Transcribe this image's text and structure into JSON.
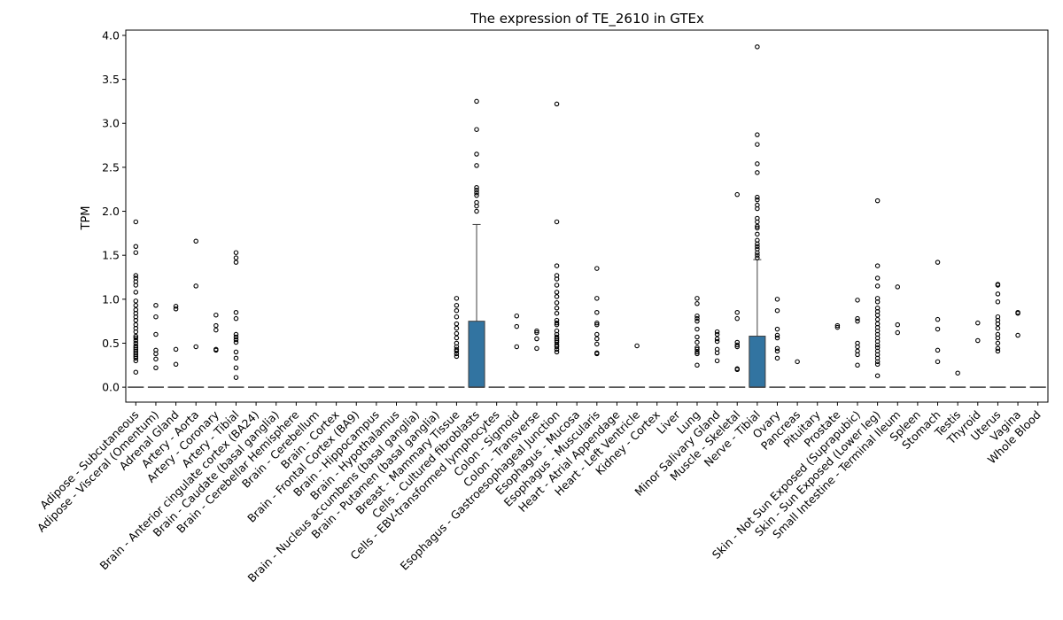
{
  "chart_data": {
    "type": "box",
    "title": "The expression of TE_2610 in GTEx",
    "xlabel": "",
    "ylabel": "TPM",
    "ylim": [
      -0.17,
      4.06
    ],
    "yticks": [
      "0.0",
      "0.5",
      "1.0",
      "1.5",
      "2.0",
      "2.5",
      "3.0",
      "3.5",
      "4.0"
    ],
    "grid": false,
    "legend": "none",
    "box_color": "#3274a1",
    "categories": [
      "Adipose - Subcutaneous",
      "Adipose - Visceral (Omentum)",
      "Adrenal Gland",
      "Artery - Aorta",
      "Artery - Coronary",
      "Artery - Tibial",
      "Brain - Anterior cingulate cortex (BA24)",
      "Brain - Caudate (basal ganglia)",
      "Brain - Cerebellar Hemisphere",
      "Brain - Cerebellum",
      "Brain - Cortex",
      "Brain - Frontal Cortex (BA9)",
      "Brain - Hippocampus",
      "Brain - Hypothalamus",
      "Brain - Nucleus accumbens (basal ganglia)",
      "Brain - Putamen (basal ganglia)",
      "Breast - Mammary Tissue",
      "Cells - Cultured fibroblasts",
      "Cells - EBV-transformed lymphocytes",
      "Colon - Sigmoid",
      "Colon - Transverse",
      "Esophagus - Gastroesophageal Junction",
      "Esophagus - Mucosa",
      "Esophagus - Muscularis",
      "Heart - Atrial Appendage",
      "Heart - Left Ventricle",
      "Kidney - Cortex",
      "Liver",
      "Lung",
      "Minor Salivary Gland",
      "Muscle - Skeletal",
      "Nerve - Tibial",
      "Ovary",
      "Pancreas",
      "Pituitary",
      "Prostate",
      "Skin - Not Sun Exposed (Suprapubic)",
      "Skin - Sun Exposed (Lower leg)",
      "Small Intestine - Terminal Ileum",
      "Spleen",
      "Stomach",
      "Testis",
      "Thyroid",
      "Uterus",
      "Vagina",
      "Whole Blood"
    ],
    "boxes": [
      {
        "q1": 0,
        "median": 0,
        "q3": 0,
        "whislo": 0,
        "whishi": 0,
        "fliers": [
          1.88,
          1.6,
          1.53,
          1.27,
          1.24,
          1.2,
          1.16,
          1.08,
          0.98,
          0.93,
          0.88,
          0.84,
          0.8,
          0.76,
          0.71,
          0.67,
          0.63,
          0.58,
          0.56,
          0.53,
          0.5,
          0.47,
          0.45,
          0.43,
          0.41,
          0.39,
          0.37,
          0.35,
          0.33,
          0.3,
          0.17
        ]
      },
      {
        "q1": 0,
        "median": 0,
        "q3": 0,
        "whislo": 0,
        "whishi": 0,
        "fliers": [
          0.93,
          0.8,
          0.6,
          0.42,
          0.38,
          0.32,
          0.22
        ]
      },
      {
        "q1": 0,
        "median": 0,
        "q3": 0,
        "whislo": 0,
        "whishi": 0,
        "fliers": [
          0.92,
          0.89,
          0.43,
          0.26
        ]
      },
      {
        "q1": 0,
        "median": 0,
        "q3": 0,
        "whislo": 0,
        "whishi": 0,
        "fliers": [
          1.66,
          1.15,
          0.46
        ]
      },
      {
        "q1": 0,
        "median": 0,
        "q3": 0,
        "whislo": 0,
        "whishi": 0,
        "fliers": [
          0.82,
          0.7,
          0.65,
          0.43,
          0.42
        ]
      },
      {
        "q1": 0,
        "median": 0,
        "q3": 0,
        "whislo": 0,
        "whishi": 0,
        "fliers": [
          1.53,
          1.47,
          1.42,
          0.85,
          0.78,
          0.6,
          0.57,
          0.54,
          0.51,
          0.4,
          0.33,
          0.22,
          0.11
        ]
      },
      {
        "q1": 0,
        "median": 0,
        "q3": 0,
        "whislo": 0,
        "whishi": 0,
        "fliers": []
      },
      {
        "q1": 0,
        "median": 0,
        "q3": 0,
        "whislo": 0,
        "whishi": 0,
        "fliers": []
      },
      {
        "q1": 0,
        "median": 0,
        "q3": 0,
        "whislo": 0,
        "whishi": 0,
        "fliers": []
      },
      {
        "q1": 0,
        "median": 0,
        "q3": 0,
        "whislo": 0,
        "whishi": 0,
        "fliers": []
      },
      {
        "q1": 0,
        "median": 0,
        "q3": 0,
        "whislo": 0,
        "whishi": 0,
        "fliers": []
      },
      {
        "q1": 0,
        "median": 0,
        "q3": 0,
        "whislo": 0,
        "whishi": 0,
        "fliers": []
      },
      {
        "q1": 0,
        "median": 0,
        "q3": 0,
        "whislo": 0,
        "whishi": 0,
        "fliers": []
      },
      {
        "q1": 0,
        "median": 0,
        "q3": 0,
        "whislo": 0,
        "whishi": 0,
        "fliers": []
      },
      {
        "q1": 0,
        "median": 0,
        "q3": 0,
        "whislo": 0,
        "whishi": 0,
        "fliers": []
      },
      {
        "q1": 0,
        "median": 0,
        "q3": 0,
        "whislo": 0,
        "whishi": 0,
        "fliers": []
      },
      {
        "q1": 0,
        "median": 0,
        "q3": 0,
        "whislo": 0,
        "whishi": 0,
        "fliers": [
          1.01,
          0.93,
          0.87,
          0.8,
          0.72,
          0.67,
          0.61,
          0.56,
          0.5,
          0.46,
          0.43,
          0.41,
          0.38,
          0.35
        ]
      },
      {
        "q1": 0,
        "median": 0,
        "q3": 0.75,
        "whislo": 0,
        "whishi": 1.85,
        "fliers": [
          3.25,
          2.93,
          2.65,
          2.52,
          2.27,
          2.24,
          2.21,
          2.18,
          2.1,
          2.06,
          2.0
        ]
      },
      {
        "q1": 0,
        "median": 0,
        "q3": 0,
        "whislo": 0,
        "whishi": 0,
        "fliers": []
      },
      {
        "q1": 0,
        "median": 0,
        "q3": 0,
        "whislo": 0,
        "whishi": 0,
        "fliers": [
          0.81,
          0.69,
          0.46
        ]
      },
      {
        "q1": 0,
        "median": 0,
        "q3": 0,
        "whislo": 0,
        "whishi": 0,
        "fliers": [
          0.64,
          0.62,
          0.55,
          0.44
        ]
      },
      {
        "q1": 0,
        "median": 0,
        "q3": 0,
        "whislo": 0,
        "whishi": 0,
        "fliers": [
          3.22,
          1.88,
          1.38,
          1.27,
          1.23,
          1.16,
          1.08,
          1.03,
          0.96,
          0.9,
          0.84,
          0.76,
          0.73,
          0.71,
          0.64,
          0.6,
          0.57,
          0.55,
          0.53,
          0.51,
          0.48,
          0.46,
          0.43,
          0.4
        ]
      },
      {
        "q1": 0,
        "median": 0,
        "q3": 0,
        "whislo": 0,
        "whishi": 0,
        "fliers": []
      },
      {
        "q1": 0,
        "median": 0,
        "q3": 0,
        "whislo": 0,
        "whishi": 0,
        "fliers": [
          1.35,
          1.01,
          0.85,
          0.73,
          0.71,
          0.6,
          0.55,
          0.49,
          0.39,
          0.38
        ]
      },
      {
        "q1": 0,
        "median": 0,
        "q3": 0,
        "whislo": 0,
        "whishi": 0,
        "fliers": []
      },
      {
        "q1": 0,
        "median": 0,
        "q3": 0,
        "whislo": 0,
        "whishi": 0,
        "fliers": [
          0.47
        ]
      },
      {
        "q1": 0,
        "median": 0,
        "q3": 0,
        "whislo": 0,
        "whishi": 0,
        "fliers": []
      },
      {
        "q1": 0,
        "median": 0,
        "q3": 0,
        "whislo": 0,
        "whishi": 0,
        "fliers": []
      },
      {
        "q1": 0,
        "median": 0,
        "q3": 0,
        "whislo": 0,
        "whishi": 0,
        "fliers": [
          1.01,
          0.95,
          0.81,
          0.78,
          0.75,
          0.66,
          0.57,
          0.51,
          0.45,
          0.43,
          0.4,
          0.38,
          0.25
        ]
      },
      {
        "q1": 0,
        "median": 0,
        "q3": 0,
        "whislo": 0,
        "whishi": 0,
        "fliers": [
          0.63,
          0.6,
          0.55,
          0.52,
          0.43,
          0.39,
          0.3
        ]
      },
      {
        "q1": 0,
        "median": 0,
        "q3": 0,
        "whislo": 0,
        "whishi": 0,
        "fliers": [
          2.19,
          0.85,
          0.78,
          0.51,
          0.48,
          0.46,
          0.21,
          0.2
        ]
      },
      {
        "q1": 0,
        "median": 0,
        "q3": 0.58,
        "whislo": 0,
        "whishi": 1.45,
        "fliers": [
          3.87,
          2.87,
          2.76,
          2.54,
          2.44,
          2.16,
          2.13,
          2.07,
          2.03,
          1.92,
          1.88,
          1.83,
          1.81,
          1.74,
          1.67,
          1.63,
          1.6,
          1.57,
          1.53,
          1.5,
          1.47
        ]
      },
      {
        "q1": 0,
        "median": 0,
        "q3": 0,
        "whislo": 0,
        "whishi": 0,
        "fliers": [
          1.0,
          0.87,
          0.66,
          0.59,
          0.56,
          0.44,
          0.41,
          0.33
        ]
      },
      {
        "q1": 0,
        "median": 0,
        "q3": 0,
        "whislo": 0,
        "whishi": 0,
        "fliers": [
          0.29
        ]
      },
      {
        "q1": 0,
        "median": 0,
        "q3": 0,
        "whislo": 0,
        "whishi": 0,
        "fliers": []
      },
      {
        "q1": 0,
        "median": 0,
        "q3": 0,
        "whislo": 0,
        "whishi": 0,
        "fliers": [
          0.7,
          0.68
        ]
      },
      {
        "q1": 0,
        "median": 0,
        "q3": 0,
        "whislo": 0,
        "whishi": 0,
        "fliers": [
          0.99,
          0.78,
          0.75,
          0.5,
          0.46,
          0.41,
          0.37,
          0.25
        ]
      },
      {
        "q1": 0,
        "median": 0,
        "q3": 0,
        "whislo": 0,
        "whishi": 0,
        "fliers": [
          2.12,
          1.38,
          1.24,
          1.15,
          1.01,
          0.97,
          0.9,
          0.86,
          0.82,
          0.77,
          0.72,
          0.68,
          0.64,
          0.6,
          0.56,
          0.52,
          0.48,
          0.45,
          0.41,
          0.37,
          0.33,
          0.29,
          0.26,
          0.13
        ]
      },
      {
        "q1": 0,
        "median": 0,
        "q3": 0,
        "whislo": 0,
        "whishi": 0,
        "fliers": [
          1.14,
          0.71,
          0.62
        ]
      },
      {
        "q1": 0,
        "median": 0,
        "q3": 0,
        "whislo": 0,
        "whishi": 0,
        "fliers": []
      },
      {
        "q1": 0,
        "median": 0,
        "q3": 0,
        "whislo": 0,
        "whishi": 0,
        "fliers": [
          1.42,
          0.77,
          0.66,
          0.42,
          0.29
        ]
      },
      {
        "q1": 0,
        "median": 0,
        "q3": 0,
        "whislo": 0,
        "whishi": 0,
        "fliers": [
          0.16
        ]
      },
      {
        "q1": 0,
        "median": 0,
        "q3": 0,
        "whislo": 0,
        "whishi": 0,
        "fliers": [
          0.73,
          0.53
        ]
      },
      {
        "q1": 0,
        "median": 0,
        "q3": 0,
        "whislo": 0,
        "whishi": 0,
        "fliers": [
          1.17,
          1.16,
          1.06,
          0.97,
          0.8,
          0.76,
          0.72,
          0.67,
          0.6,
          0.56,
          0.5,
          0.44,
          0.41
        ]
      },
      {
        "q1": 0,
        "median": 0,
        "q3": 0,
        "whislo": 0,
        "whishi": 0,
        "fliers": [
          0.85,
          0.84,
          0.59
        ]
      },
      {
        "q1": 0,
        "median": 0,
        "q3": 0,
        "whislo": 0,
        "whishi": 0,
        "fliers": []
      }
    ]
  }
}
